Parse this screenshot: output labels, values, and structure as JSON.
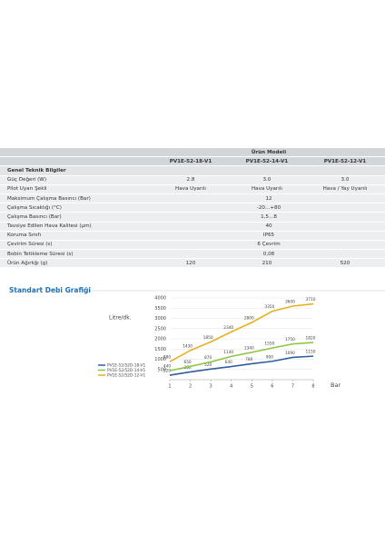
{
  "table": {
    "group_label": "Ürün Modeli",
    "columns": [
      "PV1E-52-18-V1",
      "PV1E-52-14-V1",
      "PV1E-52-12-V1"
    ],
    "section": "Genel Teknik Bilgiler",
    "rows": [
      [
        "Güç Değeri (W)",
        "2.8",
        "3.0",
        "3.0"
      ],
      [
        "Pilot Uyarı Şekli",
        "Hava Uyarılı",
        "Hava Uyarılı",
        "Hava / Yay Uyarılı"
      ],
      [
        "Maksimum Çalışma Basıncı (Bar)",
        "12"
      ],
      [
        "Çalışma Sıcaklığı (°C)",
        "-20...+80"
      ],
      [
        "Çalışma Basıncı (Bar)",
        "1,5...8"
      ],
      [
        "Tavsiye Edilen Hava Kalitesi (μm)",
        "40"
      ],
      [
        "Koruma Sınıfı",
        "IP65"
      ],
      [
        "Çevirim Süresi (s)",
        "6 Çevrim"
      ],
      [
        "Bobin Tetikleme Süresi (s)",
        "0,08"
      ],
      [
        "Ürün Ağırlığı (g)",
        "120",
        "210",
        "520"
      ]
    ]
  },
  "chart_title": "Standart Debi Grafiği",
  "chart": {
    "type": "line",
    "y_label": "Litre/dk.",
    "x_label": "Bar",
    "x": [
      1,
      2,
      3,
      4,
      5,
      6,
      7,
      8
    ],
    "xlim": [
      1,
      8
    ],
    "xticks": [
      1,
      2,
      3,
      4,
      5,
      6,
      7,
      8
    ],
    "ylim": [
      0,
      4000
    ],
    "yticks": [
      500,
      1000,
      1500,
      2000,
      2500,
      3000,
      3500,
      4000
    ],
    "series": [
      {
        "name": "PV1E-52/52D-18-V1",
        "color": "#2e5fa0",
        "values": [
          220,
          380,
          520,
          640,
          780,
          900,
          1090,
          1150
        ]
      },
      {
        "name": "PV1E-52/52D-14-V1",
        "color": "#8cc63f",
        "values": [
          440,
          650,
          870,
          1140,
          1340,
          1550,
          1750,
          1820
        ]
      },
      {
        "name": "PV1E-52/52D-12-V1",
        "color": "#e8b020",
        "values": [
          880,
          1430,
          1850,
          2340,
          2800,
          3350,
          3600,
          3710
        ]
      }
    ]
  }
}
